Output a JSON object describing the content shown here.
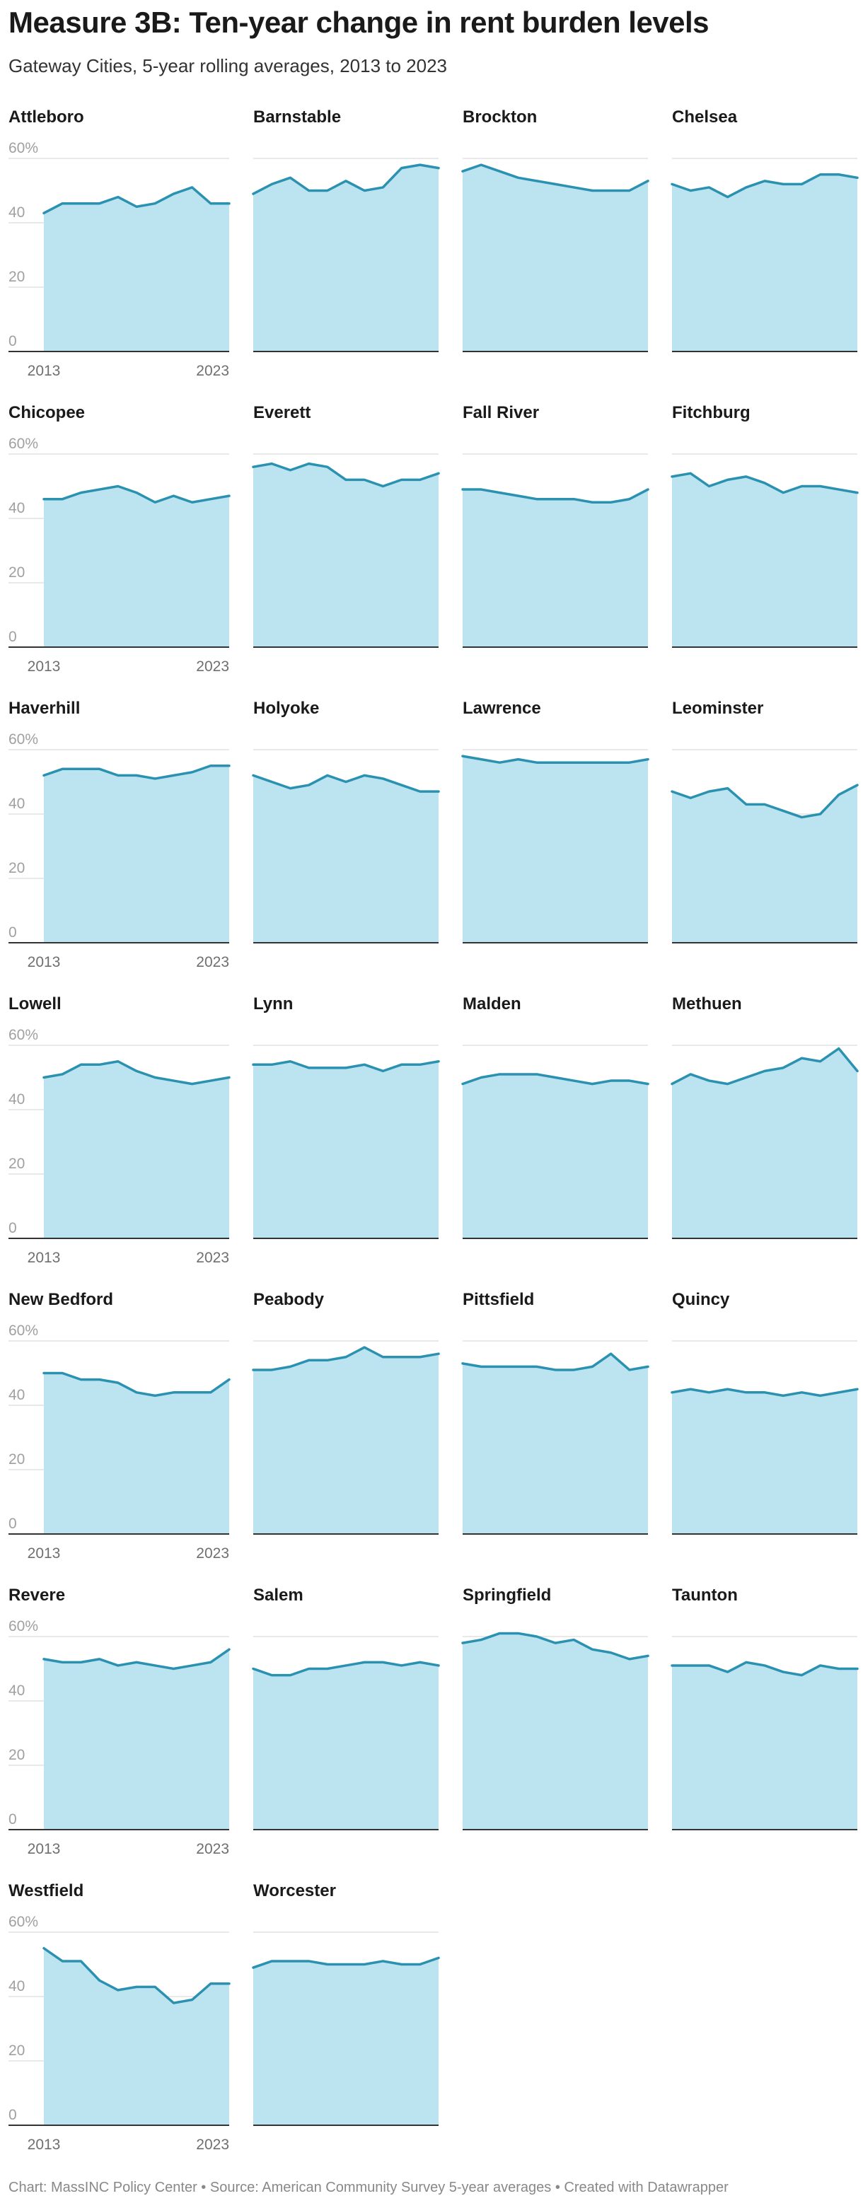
{
  "header": {
    "title": "Measure 3B: Ten-year change in rent burden levels",
    "subtitle": "Gateway Cities, 5-year rolling averages, 2013 to 2023"
  },
  "footer": {
    "credit": "Chart: MassINC Policy Center • Source: American Community Survey 5-year averages • Created with Datawrapper"
  },
  "colors": {
    "area_fill": "#bce3f0",
    "line": "#2a92b0",
    "gridline": "#e2e2e2",
    "baseline": "#333333"
  },
  "chart_data": {
    "type": "area",
    "x": [
      2013,
      2014,
      2015,
      2016,
      2017,
      2018,
      2019,
      2020,
      2021,
      2022,
      2023
    ],
    "ylim": [
      0,
      60
    ],
    "yticks": [
      0,
      20,
      40,
      60
    ],
    "ytick_labels": [
      "0",
      "20",
      "40",
      "60%"
    ],
    "xtick_labels": [
      "2013",
      "2023"
    ],
    "series": [
      {
        "name": "Attleboro",
        "values": [
          43,
          46,
          46,
          46,
          48,
          45,
          46,
          49,
          51,
          46,
          46
        ]
      },
      {
        "name": "Barnstable",
        "values": [
          49,
          52,
          54,
          50,
          50,
          53,
          50,
          51,
          57,
          58,
          57
        ]
      },
      {
        "name": "Brockton",
        "values": [
          56,
          58,
          56,
          54,
          53,
          52,
          51,
          50,
          50,
          50,
          53
        ]
      },
      {
        "name": "Chelsea",
        "values": [
          52,
          50,
          51,
          48,
          51,
          53,
          52,
          52,
          55,
          55,
          54
        ]
      },
      {
        "name": "Chicopee",
        "values": [
          46,
          46,
          48,
          49,
          50,
          48,
          45,
          47,
          45,
          46,
          47
        ]
      },
      {
        "name": "Everett",
        "values": [
          56,
          57,
          55,
          57,
          56,
          52,
          52,
          50,
          52,
          52,
          54
        ]
      },
      {
        "name": "Fall River",
        "values": [
          49,
          49,
          48,
          47,
          46,
          46,
          46,
          45,
          45,
          46,
          49
        ]
      },
      {
        "name": "Fitchburg",
        "values": [
          53,
          54,
          50,
          52,
          53,
          51,
          48,
          50,
          50,
          49,
          48
        ]
      },
      {
        "name": "Haverhill",
        "values": [
          52,
          54,
          54,
          54,
          52,
          52,
          51,
          52,
          53,
          55,
          55
        ]
      },
      {
        "name": "Holyoke",
        "values": [
          52,
          50,
          48,
          49,
          52,
          50,
          52,
          51,
          49,
          47,
          47
        ]
      },
      {
        "name": "Lawrence",
        "values": [
          58,
          57,
          56,
          57,
          56,
          56,
          56,
          56,
          56,
          56,
          57
        ]
      },
      {
        "name": "Leominster",
        "values": [
          47,
          45,
          47,
          48,
          43,
          43,
          41,
          39,
          40,
          46,
          49
        ]
      },
      {
        "name": "Lowell",
        "values": [
          50,
          51,
          54,
          54,
          55,
          52,
          50,
          49,
          48,
          49,
          50
        ]
      },
      {
        "name": "Lynn",
        "values": [
          54,
          54,
          55,
          53,
          53,
          53,
          54,
          52,
          54,
          54,
          55
        ]
      },
      {
        "name": "Malden",
        "values": [
          48,
          50,
          51,
          51,
          51,
          50,
          49,
          48,
          49,
          49,
          48
        ]
      },
      {
        "name": "Methuen",
        "values": [
          48,
          51,
          49,
          48,
          50,
          52,
          53,
          56,
          55,
          59,
          52
        ]
      },
      {
        "name": "New Bedford",
        "values": [
          50,
          50,
          48,
          48,
          47,
          44,
          43,
          44,
          44,
          44,
          48
        ]
      },
      {
        "name": "Peabody",
        "values": [
          51,
          51,
          52,
          54,
          54,
          55,
          58,
          55,
          55,
          55,
          56
        ]
      },
      {
        "name": "Pittsfield",
        "values": [
          53,
          52,
          52,
          52,
          52,
          51,
          51,
          52,
          56,
          51,
          52
        ]
      },
      {
        "name": "Quincy",
        "values": [
          44,
          45,
          44,
          45,
          44,
          44,
          43,
          44,
          43,
          44,
          45
        ]
      },
      {
        "name": "Revere",
        "values": [
          53,
          52,
          52,
          53,
          51,
          52,
          51,
          50,
          51,
          52,
          56
        ]
      },
      {
        "name": "Salem",
        "values": [
          50,
          48,
          48,
          50,
          50,
          51,
          52,
          52,
          51,
          52,
          51
        ]
      },
      {
        "name": "Springfield",
        "values": [
          58,
          59,
          61,
          61,
          60,
          58,
          59,
          56,
          55,
          53,
          54
        ]
      },
      {
        "name": "Taunton",
        "values": [
          51,
          51,
          51,
          49,
          52,
          51,
          49,
          48,
          51,
          50,
          50
        ]
      },
      {
        "name": "Westfield",
        "values": [
          55,
          51,
          51,
          45,
          42,
          43,
          43,
          38,
          39,
          44,
          44
        ]
      },
      {
        "name": "Worcester",
        "values": [
          49,
          51,
          51,
          51,
          50,
          50,
          50,
          51,
          50,
          50,
          52
        ]
      }
    ]
  }
}
